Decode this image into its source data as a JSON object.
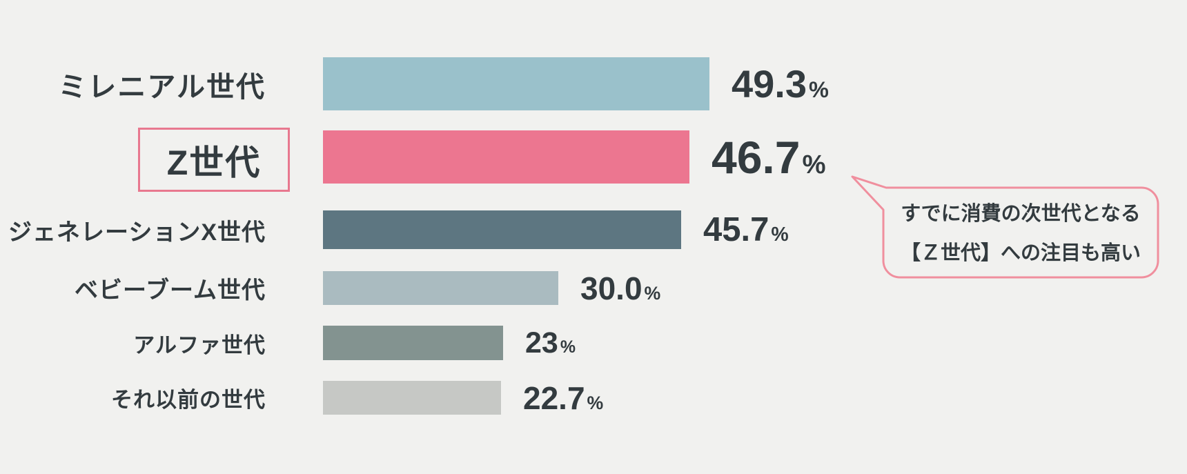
{
  "page": {
    "background": "#f1f1ef",
    "text_color": "#333b3f"
  },
  "chart_data": {
    "type": "bar",
    "orientation": "horizontal",
    "unit": "%",
    "categories": [
      "ミレニアル世代",
      "Z世代",
      "ジェネレーションX世代",
      "ベビーブーム世代",
      "アルファ世代",
      "それ以前の世代"
    ],
    "values": [
      49.3,
      46.7,
      45.7,
      30.0,
      23,
      22.7
    ],
    "value_labels": [
      "49.3",
      "46.7",
      "45.7",
      "30.0",
      "23",
      "22.7"
    ],
    "bar_colors": [
      "#9ac1cb",
      "#ec7690",
      "#5d7681",
      "#aabbc0",
      "#839390",
      "#c6c8c5"
    ],
    "highlight_index": 1,
    "highlighted_category": "Z世代",
    "xlim": [
      0,
      55
    ],
    "grid": false,
    "legend": false,
    "title": ""
  },
  "highlight_box": {
    "border_color": "#e8788f"
  },
  "annotation": {
    "shape": "speech-bubble",
    "border_color": "#f08f9e",
    "lines": [
      "すでに消費の次世代となる",
      "【Ｚ世代】への注目も高い"
    ]
  }
}
